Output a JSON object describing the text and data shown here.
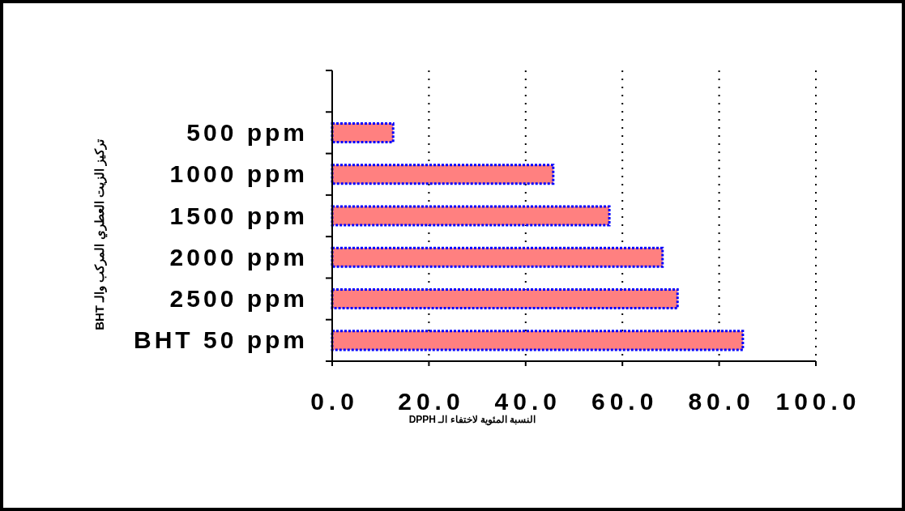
{
  "chart_data": {
    "type": "bar",
    "orientation": "horizontal",
    "categories": [
      null,
      "500 ppm",
      "1000 ppm",
      "1500 ppm",
      "2000 ppm",
      "2500 ppm",
      "BHT 50 ppm"
    ],
    "values": [
      null,
      12.6,
      45.7,
      57.3,
      68.3,
      71.4,
      84.9
    ],
    "color": "#ff8080",
    "xlabel": "النسبة المئوية لاختفاء الـ DPPH",
    "ylabel": "تركيز الزيت العطري المركب والـ BHT",
    "xlim": [
      0,
      100
    ],
    "xticks": [
      {
        "value": 0,
        "label": "0.0"
      },
      {
        "value": 20,
        "label": "20.0"
      },
      {
        "value": 40,
        "label": "40.0"
      },
      {
        "value": 60,
        "label": "60.0"
      },
      {
        "value": 80,
        "label": "80.0"
      },
      {
        "value": 100,
        "label": "100.0"
      }
    ],
    "grid": "x"
  }
}
